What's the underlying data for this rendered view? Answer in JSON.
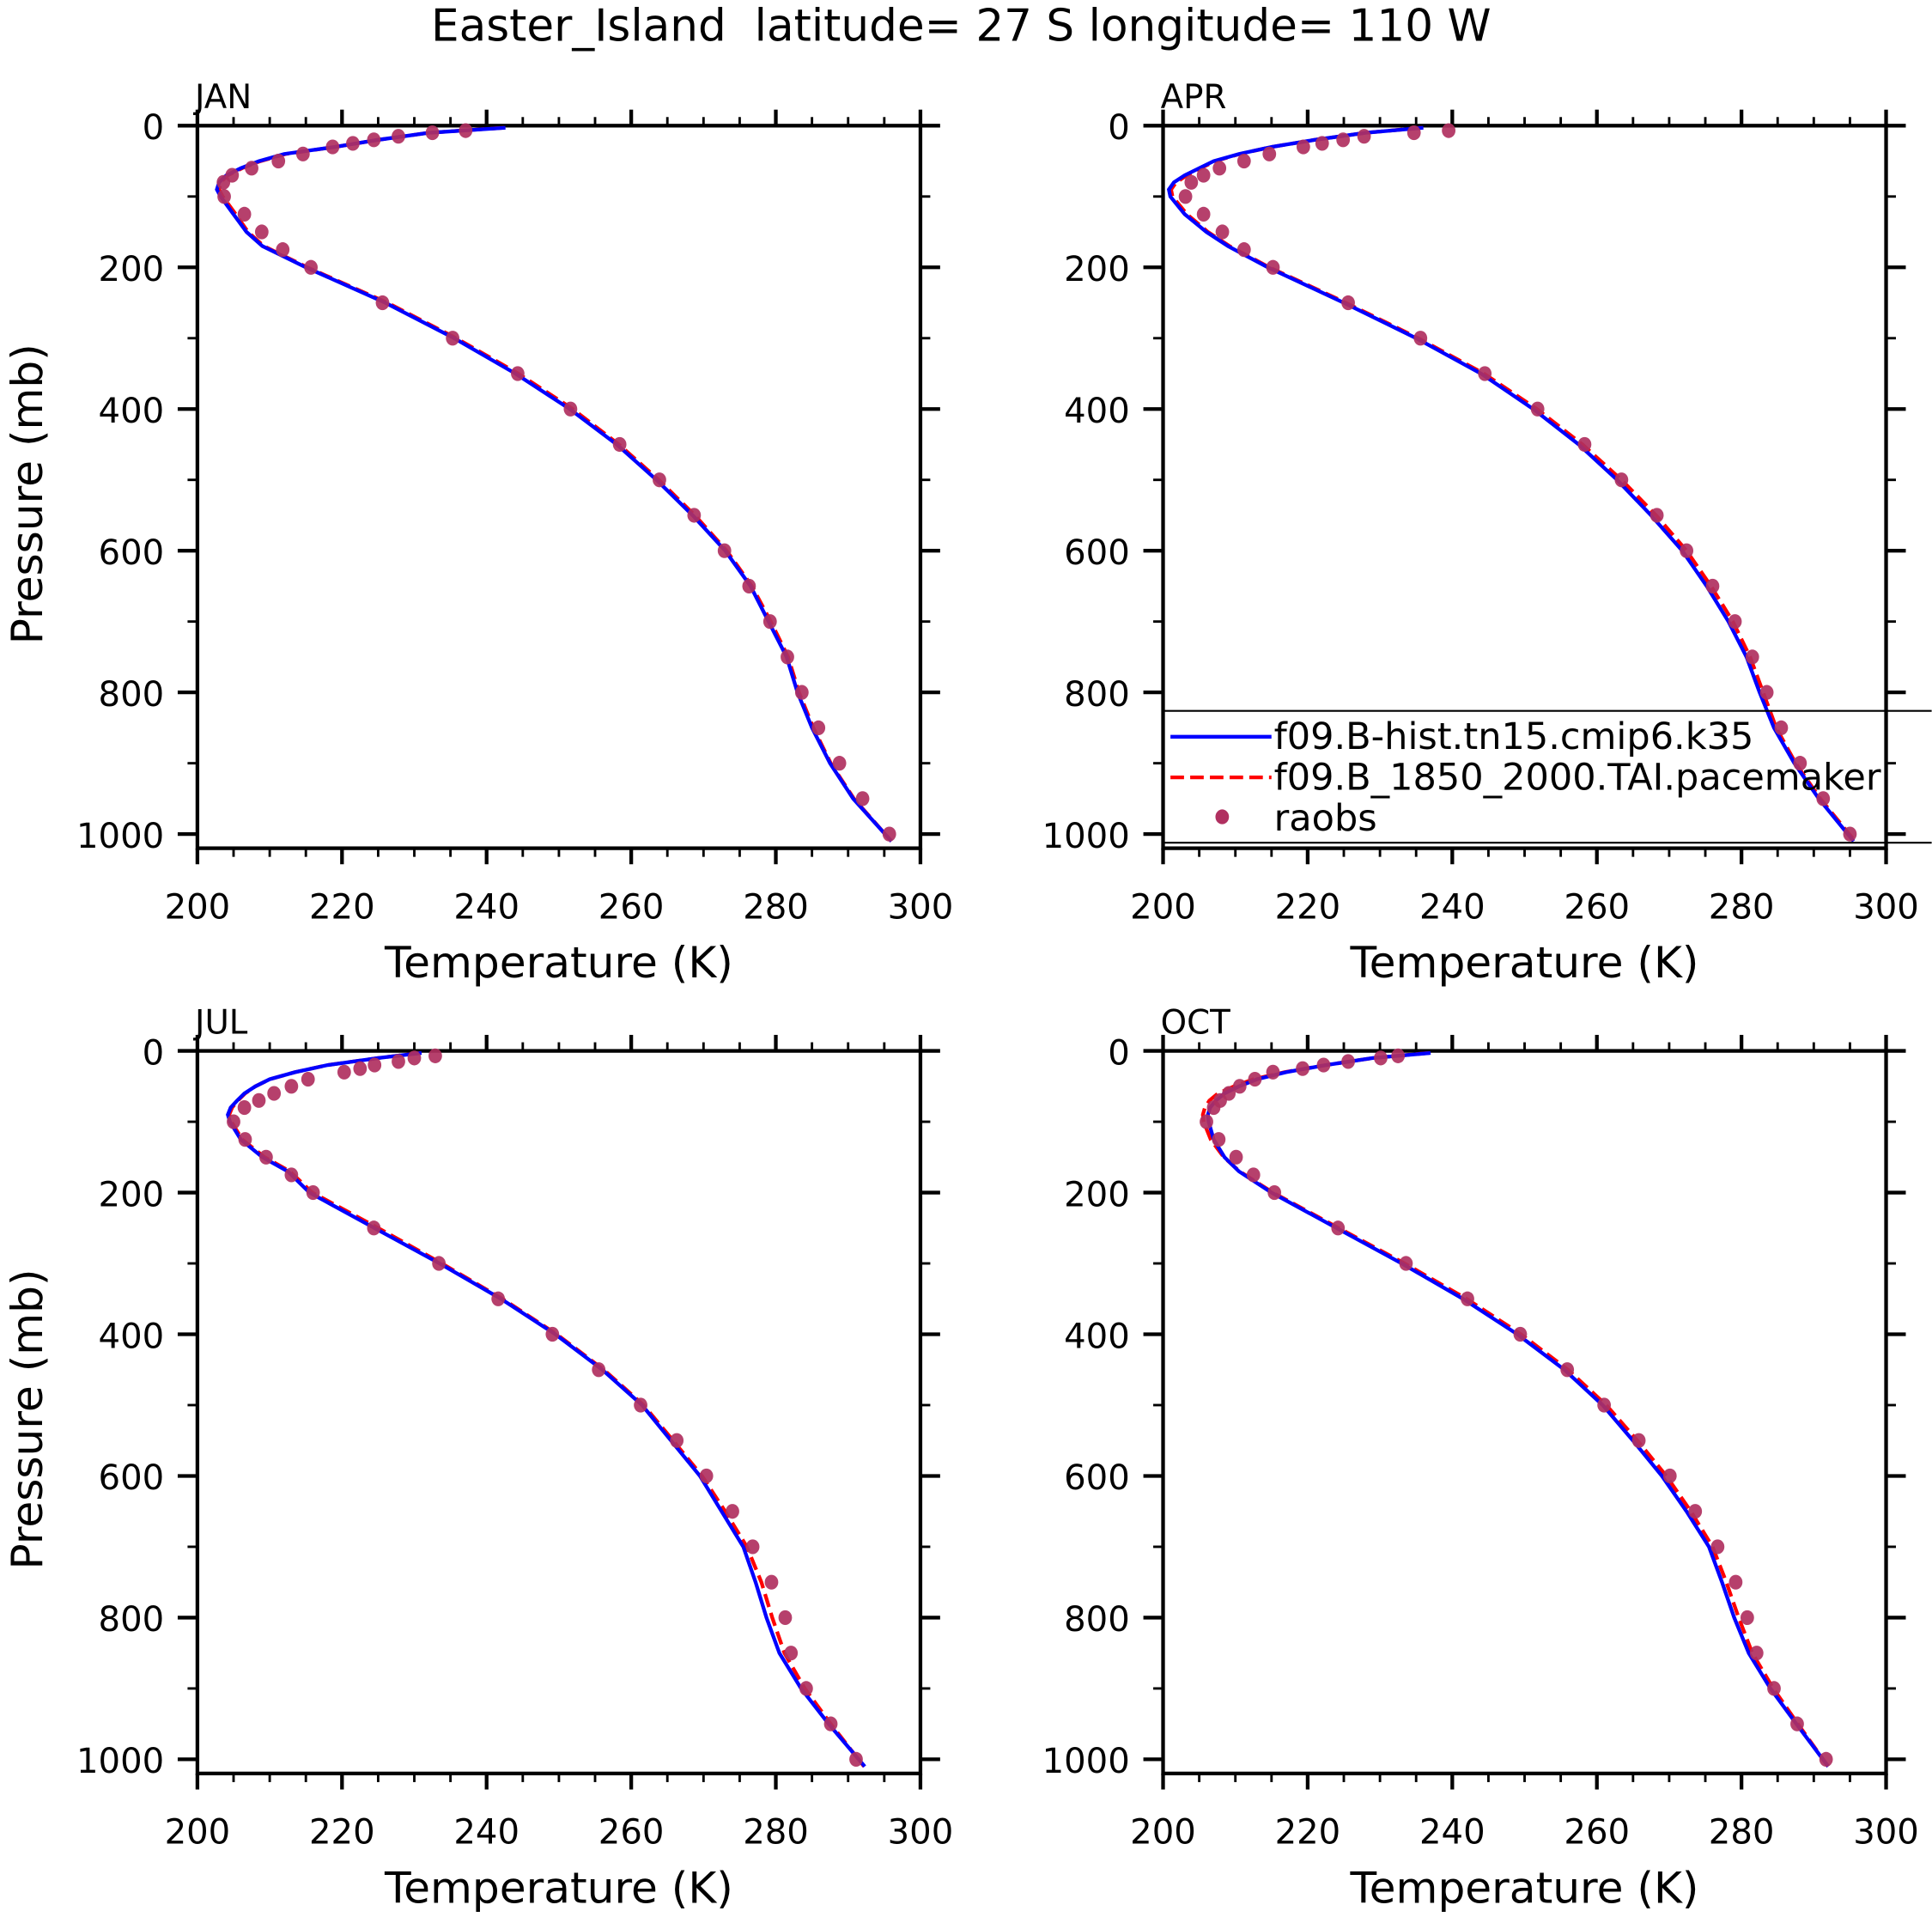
{
  "title": "Easter_Island  latitude= 27 S longitude= 110 W",
  "colors": {
    "model1": "#0000ff",
    "model2": "#ff0000",
    "obs": "#b03060",
    "axis": "#000000"
  },
  "legend": {
    "placement": "inside APR panel, bottom",
    "entries": [
      {
        "label": "f09.B-hist.tn15.cmip6.k35",
        "style": "solid",
        "color": "#0000ff"
      },
      {
        "label": "f09.B_1850_2000.TAI.pacemaker",
        "style": "dashed",
        "color": "#ff0000"
      },
      {
        "label": "raobs",
        "style": "dots",
        "color": "#b03060"
      }
    ]
  },
  "chart_data": {
    "type": "line",
    "xlabel": "Temperature (K)",
    "ylabel": "Pressure (mb)",
    "xlim": [
      200,
      300
    ],
    "ylim": [
      0,
      1020
    ],
    "y_inverted": true,
    "xticks": [
      200,
      220,
      240,
      260,
      280,
      300
    ],
    "yticks": [
      0,
      200,
      400,
      600,
      800,
      1000
    ],
    "model_pressure": [
      3,
      10,
      20,
      30,
      40,
      50,
      60,
      70,
      80,
      90,
      100,
      125,
      150,
      170,
      200,
      250,
      300,
      350,
      400,
      450,
      500,
      550,
      600,
      650,
      700,
      750,
      800,
      850,
      900,
      950,
      1010
    ],
    "obs_pressure": [
      7,
      10,
      15,
      20,
      25,
      30,
      40,
      50,
      60,
      70,
      80,
      100,
      125,
      150,
      175,
      200,
      250,
      300,
      350,
      400,
      450,
      500,
      550,
      600,
      650,
      700,
      750,
      800,
      850,
      900,
      950,
      1000
    ],
    "panels": [
      {
        "name": "JAN",
        "show_ylabel": true,
        "series": [
          {
            "name": "f09.B-hist.tn15.cmip6.k35",
            "values": [
              242.6,
              232,
              225,
              219,
              212,
              208.5,
              206,
              204,
              203,
              202.7,
              203.2,
              205,
              206.8,
              209,
              215,
              226,
              235.5,
              244,
              251.5,
              258,
              263.5,
              268.5,
              273,
              276.5,
              279,
              281.5,
              283,
              285,
              287.5,
              290.7,
              296
            ]
          },
          {
            "name": "f09.B_1850_2000.TAI.pacemaker",
            "values": [
              242.4,
              232,
              225,
              219,
              212.2,
              208.7,
              206.2,
              204.2,
              203.2,
              203,
              203.5,
              205.3,
              207,
              209.2,
              215.2,
              226.3,
              235.8,
              244.4,
              251.9,
              258.3,
              263.8,
              268.8,
              273.2,
              276.7,
              279.3,
              281.7,
              283.2,
              285.2,
              287.6,
              290.8,
              296
            ]
          },
          {
            "name": "raobs",
            "values": [
              237.1,
              232.5,
              227.8,
              224.4,
              221.5,
              218.7,
              214.6,
              211.2,
              207.5,
              204.8,
              203.6,
              203.7,
              206.5,
              208.9,
              211.8,
              215.7,
              225.6,
              235.3,
              244.3,
              251.6,
              258.4,
              263.9,
              268.7,
              272.9,
              276.3,
              279.2,
              281.6,
              283.6,
              285.9,
              288.8,
              292,
              295.7
            ]
          }
        ]
      },
      {
        "name": "APR",
        "show_ylabel": false,
        "series": [
          {
            "name": "f09.B-hist.tn15.cmip6.k35",
            "values": [
              236,
              228,
              221,
              215,
              210.5,
              207,
              205,
              203,
              201.5,
              200.8,
              201,
              203,
              206,
              209,
              214.5,
              225,
              235,
              244,
              251.2,
              257.5,
              262.8,
              267.5,
              271.8,
              275.2,
              278.2,
              280.7,
              282.5,
              284.5,
              287.3,
              290.7,
              295.5
            ]
          },
          {
            "name": "f09.B_1850_2000.TAI.pacemaker",
            "values": [
              235.8,
              228,
              221,
              215,
              210.6,
              207.2,
              205.2,
              203.3,
              201.8,
              201.1,
              201.3,
              203.3,
              206.2,
              209.2,
              214.7,
              225.3,
              235.3,
              244.4,
              251.7,
              258,
              263.4,
              268.2,
              272.4,
              275.8,
              278.8,
              281.2,
              283,
              284.8,
              287.5,
              290.9,
              295.7
            ]
          },
          {
            "name": "raobs",
            "values": [
              239.5,
              234.7,
              227.8,
              224.9,
              222,
              219.4,
              214.7,
              211.2,
              207.8,
              205.6,
              203.9,
              203.1,
              205.6,
              208.2,
              211.2,
              215.2,
              225.6,
              235.6,
              244.5,
              251.8,
              258.3,
              263.4,
              268.3,
              272.4,
              276,
              279.1,
              281.5,
              283.5,
              285.5,
              288.1,
              291.3,
              295
            ]
          }
        ]
      },
      {
        "name": "JUL",
        "show_ylabel": true,
        "series": [
          {
            "name": "f09.B-hist.tn15.cmip6.k35",
            "values": [
              231,
              225,
              218,
              213.5,
              210,
              208,
              206.5,
              205.5,
              204.6,
              204.2,
              204.5,
              206,
              209,
              212.5,
              215.5,
              224.5,
              233.5,
              242,
              249.5,
              256,
              261.5,
              265.5,
              269.5,
              272.5,
              275.5,
              277.2,
              278.7,
              280.5,
              283.5,
              287.3,
              292.3
            ]
          },
          {
            "name": "f09.B_1850_2000.TAI.pacemaker",
            "values": [
              230.8,
              225,
              218,
              213.5,
              210,
              208,
              206.6,
              205.6,
              204.8,
              204.4,
              204.7,
              206.2,
              209.3,
              212.8,
              215.9,
              225,
              233.8,
              242.2,
              249.7,
              256.2,
              261.7,
              265.8,
              269.8,
              273,
              276,
              278,
              279.5,
              281.2,
              284,
              287.6,
              292.2
            ]
          },
          {
            "name": "raobs",
            "values": [
              232.9,
              230,
              227.8,
              224.5,
              222.5,
              220.3,
              215.3,
              213,
              210.6,
              208.5,
              206.5,
              205,
              206.6,
              209.5,
              213,
              216,
              224.4,
              233.4,
              241.6,
              249.1,
              255.5,
              261.3,
              266.3,
              270.4,
              274,
              276.8,
              279.4,
              281.3,
              282.1,
              284.2,
              287.6,
              291.1
            ]
          }
        ]
      },
      {
        "name": "OCT",
        "show_ylabel": false,
        "series": [
          {
            "name": "f09.B-hist.tn15.cmip6.k35",
            "values": [
              237,
              229,
              222.5,
              217,
              213,
              210.5,
              208.5,
              207.3,
              206.5,
              206.2,
              206.3,
              207,
              208.5,
              210.5,
              215,
              224,
              233,
              241.5,
              249,
              255.5,
              260.8,
              265,
              269,
              272.4,
              275.5,
              277.3,
              279,
              281,
              284,
              287.6,
              292
            ]
          },
          {
            "name": "f09.B_1850_2000.TAI.pacemaker",
            "values": [
              236.8,
              229,
              222.5,
              216.8,
              212.5,
              209.8,
              207.6,
              206.4,
              205.8,
              205.5,
              205.6,
              206.6,
              208.4,
              210.6,
              215.2,
              224.3,
              233.4,
              242,
              249.5,
              256,
              261.3,
              265.6,
              269.6,
              273,
              276,
              277.9,
              279.6,
              281.5,
              284.4,
              287.8,
              292
            ]
          },
          {
            "name": "raobs",
            "values": [
              232.5,
              230.1,
              225.6,
              222.2,
              219.3,
              215.2,
              212.7,
              210.6,
              209.1,
              207.9,
              207,
              206,
              207.7,
              210.1,
              212.5,
              215.4,
              224.2,
              233.6,
              242.1,
              249.4,
              255.9,
              261,
              265.8,
              270.1,
              273.6,
              276.7,
              279.2,
              280.8,
              282.1,
              284.5,
              287.7,
              291.7
            ]
          }
        ]
      }
    ]
  }
}
